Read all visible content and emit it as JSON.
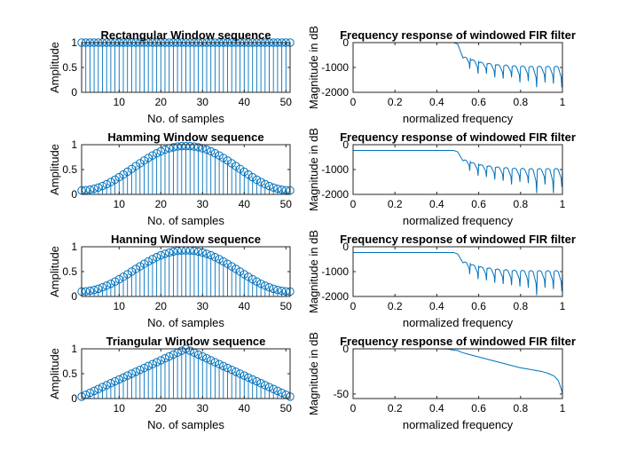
{
  "figure": {
    "background": "#ffffff",
    "series_color": "#0072BD",
    "axis_color": "#262626"
  },
  "chart_data": [
    {
      "type": "stem",
      "title": "Rectangular Window sequence",
      "xlabel": "No. of samples",
      "ylabel": "Amplitude",
      "xlim": [
        1,
        51
      ],
      "ylim": [
        0,
        1
      ],
      "xticks": [
        10,
        20,
        30,
        40,
        50
      ],
      "yticks": [
        0,
        0.5,
        1
      ],
      "yticklabels": [
        "0",
        "0.5",
        "1"
      ],
      "n": 51,
      "window": "rectangular",
      "values": [
        1,
        1,
        1,
        1,
        1,
        1,
        1,
        1,
        1,
        1,
        1,
        1,
        1,
        1,
        1,
        1,
        1,
        1,
        1,
        1,
        1,
        1,
        1,
        1,
        1,
        1,
        1,
        1,
        1,
        1,
        1,
        1,
        1,
        1,
        1,
        1,
        1,
        1,
        1,
        1,
        1,
        1,
        1,
        1,
        1,
        1,
        1,
        1,
        1,
        1,
        1
      ]
    },
    {
      "type": "line",
      "title": "Frequency response of windowed FIR filter",
      "xlabel": "normalized frequency",
      "ylabel": "Magnitude in dB",
      "xlim": [
        0,
        1
      ],
      "ylim": [
        -2000,
        0
      ],
      "xticks": [
        0,
        0.2,
        0.4,
        0.6,
        0.8,
        1
      ],
      "xticklabels": [
        "0",
        "0.2",
        "0.4",
        "0.6",
        "0.8",
        "1"
      ],
      "yticks": [
        -2000,
        -1000,
        0
      ],
      "yticklabels": [
        "-2000",
        "-1000",
        "0"
      ],
      "series": [
        {
          "passband_level": 0,
          "cutoff": 0.5,
          "transition_end": 0.525,
          "lobes": [
            {
              "start": 0.525,
              "end": 0.56,
              "top": -620,
              "notch": -1050
            },
            {
              "start": 0.56,
              "end": 0.6,
              "top": -730,
              "notch": -1250
            },
            {
              "start": 0.6,
              "end": 0.64,
              "top": -830,
              "notch": -1250
            },
            {
              "start": 0.64,
              "end": 0.68,
              "top": -880,
              "notch": -1400
            },
            {
              "start": 0.68,
              "end": 0.72,
              "top": -930,
              "notch": -1450
            },
            {
              "start": 0.72,
              "end": 0.76,
              "top": -950,
              "notch": -1400
            },
            {
              "start": 0.76,
              "end": 0.8,
              "top": -980,
              "notch": -1600
            },
            {
              "start": 0.8,
              "end": 0.84,
              "top": -990,
              "notch": -1550
            },
            {
              "start": 0.84,
              "end": 0.88,
              "top": -1000,
              "notch": -1800
            },
            {
              "start": 0.88,
              "end": 0.92,
              "top": -1000,
              "notch": -1600
            },
            {
              "start": 0.92,
              "end": 0.96,
              "top": -1000,
              "notch": -1650
            },
            {
              "start": 0.96,
              "end": 1.0,
              "top": -1000,
              "notch": -1800
            }
          ]
        }
      ]
    },
    {
      "type": "stem",
      "title": "Hamming Window sequence",
      "xlabel": "No. of samples",
      "ylabel": "Amplitude",
      "xlim": [
        1,
        51
      ],
      "ylim": [
        0,
        1
      ],
      "xticks": [
        10,
        20,
        30,
        40,
        50
      ],
      "yticks": [
        0,
        0.5,
        1
      ],
      "yticklabels": [
        "0",
        "0.5",
        "1"
      ],
      "n": 51,
      "window": "hamming",
      "values": [
        0.08,
        0.084,
        0.095,
        0.113,
        0.138,
        0.169,
        0.206,
        0.248,
        0.295,
        0.346,
        0.4,
        0.456,
        0.513,
        0.57,
        0.627,
        0.682,
        0.734,
        0.783,
        0.827,
        0.867,
        0.9,
        0.927,
        0.948,
        0.963,
        0.97,
        0.97,
        0.97,
        0.963,
        0.948,
        0.927,
        0.9,
        0.867,
        0.827,
        0.783,
        0.734,
        0.682,
        0.627,
        0.57,
        0.513,
        0.456,
        0.4,
        0.346,
        0.295,
        0.248,
        0.206,
        0.169,
        0.138,
        0.113,
        0.095,
        0.084,
        0.08
      ]
    },
    {
      "type": "line",
      "title": "Frequency response of windowed FIR filter",
      "xlabel": "normalized frequency",
      "ylabel": "Magnitude in dB",
      "xlim": [
        0,
        1
      ],
      "ylim": [
        -2000,
        0
      ],
      "xticks": [
        0,
        0.2,
        0.4,
        0.6,
        0.8,
        1
      ],
      "xticklabels": [
        "0",
        "0.2",
        "0.4",
        "0.6",
        "0.8",
        "1"
      ],
      "yticks": [
        -2000,
        -1000,
        0
      ],
      "yticklabels": [
        "-2000",
        "-1000",
        "0"
      ],
      "series": [
        {
          "passband_level": -230,
          "cutoff": 0.5,
          "transition_end": 0.525,
          "lobes": [
            {
              "start": 0.525,
              "end": 0.56,
              "top": -650,
              "notch": -1050
            },
            {
              "start": 0.56,
              "end": 0.6,
              "top": -760,
              "notch": -1250
            },
            {
              "start": 0.6,
              "end": 0.64,
              "top": -850,
              "notch": -1300
            },
            {
              "start": 0.64,
              "end": 0.68,
              "top": -900,
              "notch": -1400
            },
            {
              "start": 0.68,
              "end": 0.72,
              "top": -940,
              "notch": -1450
            },
            {
              "start": 0.72,
              "end": 0.76,
              "top": -970,
              "notch": -1600
            },
            {
              "start": 0.76,
              "end": 0.8,
              "top": -990,
              "notch": -1500
            },
            {
              "start": 0.8,
              "end": 0.84,
              "top": -1000,
              "notch": -1550
            },
            {
              "start": 0.84,
              "end": 0.88,
              "top": -1010,
              "notch": -1950
            },
            {
              "start": 0.88,
              "end": 0.92,
              "top": -1010,
              "notch": -1600
            },
            {
              "start": 0.92,
              "end": 0.96,
              "top": -1010,
              "notch": -1950
            },
            {
              "start": 0.96,
              "end": 1.0,
              "top": -1010,
              "notch": -1700
            }
          ]
        }
      ]
    },
    {
      "type": "stem",
      "title": "Hanning Window sequence",
      "xlabel": "No. of samples",
      "ylabel": "Amplitude",
      "xlim": [
        1,
        51
      ],
      "ylim": [
        0,
        1
      ],
      "xticks": [
        10,
        20,
        30,
        40,
        50
      ],
      "yticks": [
        0,
        0.5,
        1
      ],
      "yticklabels": [
        "0",
        "0.5",
        "1"
      ],
      "n": 51,
      "window": "hanning",
      "values": [
        0.1,
        0.104,
        0.114,
        0.131,
        0.154,
        0.183,
        0.217,
        0.256,
        0.299,
        0.346,
        0.396,
        0.448,
        0.501,
        0.554,
        0.606,
        0.657,
        0.705,
        0.75,
        0.791,
        0.828,
        0.859,
        0.884,
        0.903,
        0.917,
        0.924,
        0.925,
        0.924,
        0.917,
        0.903,
        0.884,
        0.859,
        0.828,
        0.791,
        0.75,
        0.705,
        0.657,
        0.606,
        0.554,
        0.501,
        0.448,
        0.396,
        0.346,
        0.299,
        0.256,
        0.217,
        0.183,
        0.154,
        0.131,
        0.114,
        0.104,
        0.1
      ]
    },
    {
      "type": "line",
      "title": "Frequency response of windowed FIR filter",
      "xlabel": "normalized frequency",
      "ylabel": "Magnitude in dB",
      "xlim": [
        0,
        1
      ],
      "ylim": [
        -2000,
        0
      ],
      "xticks": [
        0,
        0.2,
        0.4,
        0.6,
        0.8,
        1
      ],
      "xticklabels": [
        "0",
        "0.2",
        "0.4",
        "0.6",
        "0.8",
        "1"
      ],
      "yticks": [
        -2000,
        -1000,
        0
      ],
      "yticklabels": [
        "-2000",
        "-1000",
        "0"
      ],
      "series": [
        {
          "passband_level": -230,
          "cutoff": 0.5,
          "transition_end": 0.525,
          "lobes": [
            {
              "start": 0.525,
              "end": 0.56,
              "top": -650,
              "notch": -1100
            },
            {
              "start": 0.56,
              "end": 0.6,
              "top": -760,
              "notch": -1300
            },
            {
              "start": 0.6,
              "end": 0.64,
              "top": -850,
              "notch": -1350
            },
            {
              "start": 0.64,
              "end": 0.68,
              "top": -900,
              "notch": -1450
            },
            {
              "start": 0.68,
              "end": 0.72,
              "top": -940,
              "notch": -1500
            },
            {
              "start": 0.72,
              "end": 0.76,
              "top": -970,
              "notch": -1550
            },
            {
              "start": 0.76,
              "end": 0.8,
              "top": -990,
              "notch": -1600
            },
            {
              "start": 0.8,
              "end": 0.84,
              "top": -1000,
              "notch": -1650
            },
            {
              "start": 0.84,
              "end": 0.88,
              "top": -1010,
              "notch": -1950
            },
            {
              "start": 0.88,
              "end": 0.92,
              "top": -1010,
              "notch": -1650
            },
            {
              "start": 0.92,
              "end": 0.96,
              "top": -1010,
              "notch": -1700
            },
            {
              "start": 0.96,
              "end": 1.0,
              "top": -1010,
              "notch": -1800
            }
          ]
        }
      ]
    },
    {
      "type": "stem",
      "title": "Triangular Window sequence",
      "xlabel": "No. of samples",
      "ylabel": "Amplitude",
      "xlim": [
        1,
        51
      ],
      "ylim": [
        0,
        1
      ],
      "xticks": [
        10,
        20,
        30,
        40,
        50
      ],
      "yticks": [
        0,
        0.5,
        1
      ],
      "yticklabels": [
        "0",
        "0.5",
        "1"
      ],
      "n": 51,
      "window": "triangular",
      "values": [
        0.038,
        0.077,
        0.115,
        0.154,
        0.192,
        0.231,
        0.269,
        0.308,
        0.346,
        0.385,
        0.423,
        0.462,
        0.5,
        0.538,
        0.577,
        0.615,
        0.654,
        0.692,
        0.731,
        0.769,
        0.808,
        0.846,
        0.885,
        0.923,
        0.962,
        1,
        0.962,
        0.923,
        0.885,
        0.846,
        0.808,
        0.769,
        0.731,
        0.692,
        0.654,
        0.615,
        0.577,
        0.538,
        0.5,
        0.462,
        0.423,
        0.385,
        0.346,
        0.308,
        0.269,
        0.231,
        0.192,
        0.154,
        0.115,
        0.077,
        0.038
      ]
    },
    {
      "type": "line",
      "title": "Frequency response of windowed FIR filter",
      "xlabel": "normalized frequency",
      "ylabel": "Magnitude in dB",
      "xlim": [
        0,
        1
      ],
      "ylim": [
        -55,
        0
      ],
      "xticks": [
        0,
        0.2,
        0.4,
        0.6,
        0.8,
        1
      ],
      "xticklabels": [
        "0",
        "0.2",
        "0.4",
        "0.6",
        "0.8",
        "1"
      ],
      "yticks": [
        -50,
        0
      ],
      "yticklabels": [
        "-50",
        "0"
      ],
      "series": [
        {
          "points": [
            [
              0,
              0
            ],
            [
              0.2,
              0
            ],
            [
              0.4,
              0
            ],
            [
              0.45,
              -0.3
            ],
            [
              0.5,
              -2
            ],
            [
              0.52,
              -4
            ],
            [
              0.55,
              -6
            ],
            [
              0.6,
              -9
            ],
            [
              0.65,
              -12
            ],
            [
              0.7,
              -15
            ],
            [
              0.75,
              -18
            ],
            [
              0.8,
              -21
            ],
            [
              0.85,
              -23
            ],
            [
              0.9,
              -25
            ],
            [
              0.93,
              -27
            ],
            [
              0.96,
              -30
            ],
            [
              0.98,
              -35
            ],
            [
              0.995,
              -45
            ],
            [
              1,
              -50
            ]
          ]
        }
      ]
    }
  ]
}
